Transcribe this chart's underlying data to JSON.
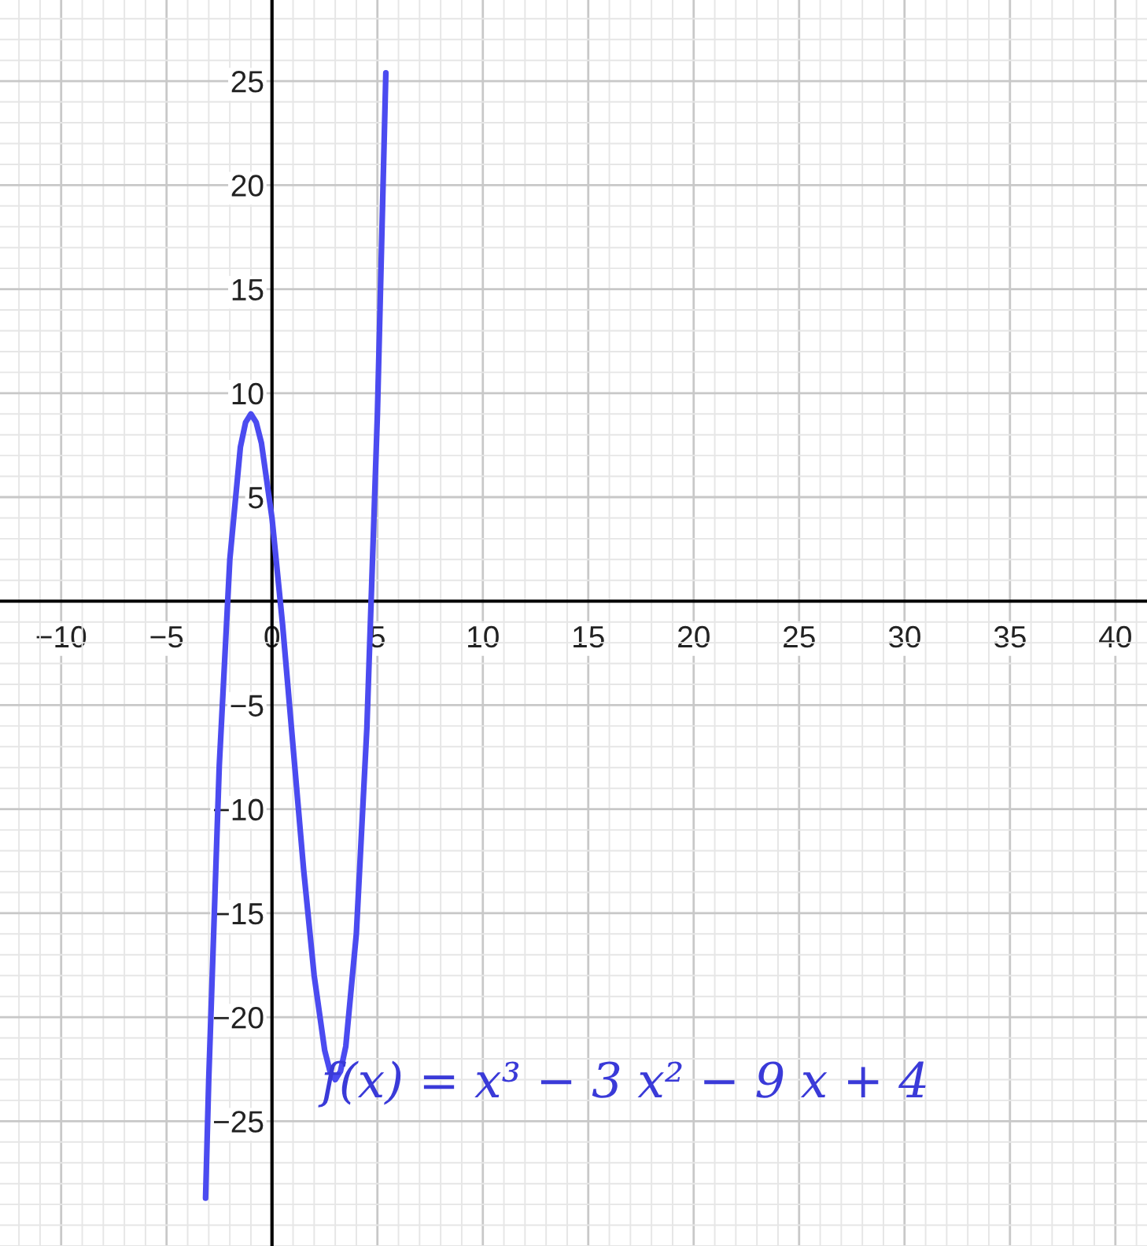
{
  "chart_data": {
    "type": "line",
    "x": [
      -3.15,
      -3,
      -2.5,
      -2,
      -1.5,
      -1.25,
      -1,
      -0.75,
      -0.5,
      0,
      0.5,
      1,
      1.5,
      2,
      2.5,
      2.75,
      3,
      3.25,
      3.5,
      4,
      4.5,
      5,
      5.4
    ],
    "series": [
      {
        "color": "#4b4bf0",
        "values": [
          -28.7,
          -23,
          -7.9,
          2,
          7.4,
          8.6,
          9,
          8.6,
          7.6,
          4,
          -1.1,
          -7,
          -12.9,
          -18,
          -21.6,
          -22.6,
          -23,
          -22.6,
          -21.4,
          -16,
          -6.1,
          9,
          25.4
        ]
      }
    ],
    "xlim": [
      -12.9,
      41.5
    ],
    "ylim": [
      -31,
      28.9
    ],
    "xticks": [
      {
        "value": -10,
        "label": "−10"
      },
      {
        "value": -5,
        "label": "−5"
      },
      0,
      5,
      10,
      15,
      20,
      25,
      30,
      35,
      40
    ],
    "yticks": [
      {
        "value": -25,
        "label": "−25"
      },
      {
        "value": -20,
        "label": "−20"
      },
      {
        "value": -15,
        "label": "−15"
      },
      {
        "value": -10,
        "label": "−10"
      },
      {
        "value": -5,
        "label": "−5"
      },
      5,
      10,
      15,
      20,
      25
    ],
    "grid": true,
    "marker": "none",
    "line_style": "solid",
    "annotations": [
      "f(x) = x³ − 3 x² − 9 x + 4"
    ]
  }
}
